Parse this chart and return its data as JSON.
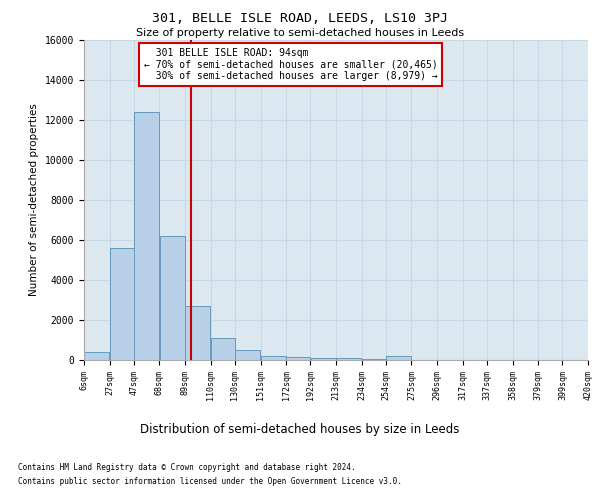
{
  "title": "301, BELLE ISLE ROAD, LEEDS, LS10 3PJ",
  "subtitle": "Size of property relative to semi-detached houses in Leeds",
  "xlabel": "Distribution of semi-detached houses by size in Leeds",
  "ylabel": "Number of semi-detached properties",
  "property_label": "301 BELLE ISLE ROAD: 94sqm",
  "pct_smaller": 70,
  "count_smaller": "20,465",
  "pct_larger": 30,
  "count_larger": "8,979",
  "bin_edges": [
    6,
    27,
    47,
    68,
    89,
    110,
    130,
    151,
    172,
    192,
    213,
    234,
    254,
    275,
    296,
    317,
    337,
    358,
    379,
    399,
    420
  ],
  "bar_heights": [
    400,
    5600,
    12400,
    6200,
    2700,
    1100,
    500,
    200,
    150,
    100,
    80,
    50,
    200,
    0,
    0,
    0,
    0,
    0,
    0,
    0
  ],
  "bar_color": "#b8d0e8",
  "bar_edge_color": "#6699bb",
  "vline_color": "#cc0000",
  "vline_x": 94,
  "annotation_box_color": "#cc0000",
  "grid_color": "#c8d8e8",
  "bg_color": "#dce8f0",
  "ylim": [
    0,
    16000
  ],
  "yticks": [
    0,
    2000,
    4000,
    6000,
    8000,
    10000,
    12000,
    14000,
    16000
  ],
  "footer_line1": "Contains HM Land Registry data © Crown copyright and database right 2024.",
  "footer_line2": "Contains public sector information licensed under the Open Government Licence v3.0."
}
